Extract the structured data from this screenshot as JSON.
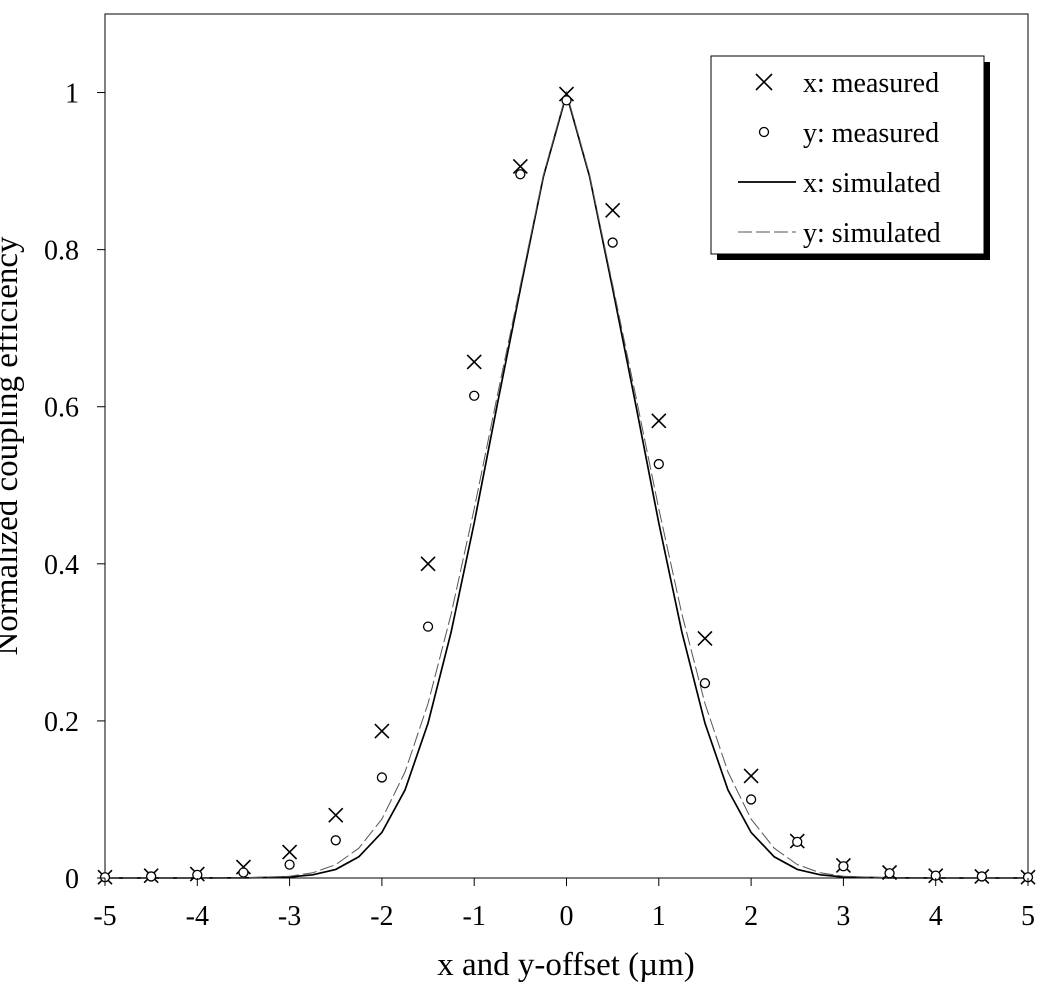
{
  "chart_data": {
    "type": "scatter",
    "title": "",
    "xlabel": "x and y-offset (µm)",
    "ylabel": "Normalized coupling efficiency",
    "xlim": [
      -5,
      5
    ],
    "ylim": [
      0,
      1.1
    ],
    "xticks": [
      -5,
      -4,
      -3,
      -2,
      -1,
      0,
      1,
      2,
      3,
      4,
      5
    ],
    "yticks": [
      0,
      0.2,
      0.4,
      0.6,
      0.8,
      1
    ],
    "xtick_labels": [
      "-5",
      "-4",
      "-3",
      "-2",
      "-1",
      "0",
      "1",
      "2",
      "3",
      "4",
      "5"
    ],
    "ytick_labels": [
      "0",
      "0.2",
      "0.4",
      "0.6",
      "0.8",
      "1"
    ],
    "grid": false,
    "legend_position": "top-right",
    "series": [
      {
        "name": "x: measured",
        "kind": "scatter",
        "marker": "x",
        "x": [
          -5,
          -4.5,
          -4,
          -3.5,
          -3,
          -2.5,
          -2,
          -1.5,
          -1,
          -0.5,
          0,
          0.5,
          1,
          1.5,
          2,
          2.5,
          3,
          3.5,
          4,
          4.5,
          5
        ],
        "y": [
          0.001,
          0.003,
          0.005,
          0.014,
          0.033,
          0.08,
          0.187,
          0.4,
          0.657,
          0.906,
          0.998,
          0.85,
          0.582,
          0.305,
          0.13,
          0.047,
          0.016,
          0.007,
          0.003,
          0.002,
          0.001
        ]
      },
      {
        "name": "y: measured",
        "kind": "scatter",
        "marker": "circle",
        "x": [
          -5,
          -4.5,
          -4,
          -3.5,
          -3,
          -2.5,
          -2,
          -1.5,
          -1,
          -0.5,
          0,
          0.5,
          1,
          1.5,
          2,
          2.5,
          3,
          3.5,
          4,
          4.5,
          5
        ],
        "y": [
          0.001,
          0.002,
          0.004,
          0.007,
          0.017,
          0.048,
          0.128,
          0.32,
          0.614,
          0.896,
          0.99,
          0.809,
          0.527,
          0.248,
          0.1,
          0.046,
          0.015,
          0.006,
          0.003,
          0.002,
          0.001
        ]
      },
      {
        "name": "x: simulated",
        "kind": "line",
        "x": [
          -5,
          -4.5,
          -4,
          -3.5,
          -3,
          -2.75,
          -2.5,
          -2.25,
          -2,
          -1.75,
          -1.5,
          -1.25,
          -1,
          -0.75,
          -0.5,
          -0.25,
          0,
          0.25,
          0.5,
          0.75,
          1,
          1.25,
          1.5,
          1.75,
          2,
          2.25,
          2.5,
          2.75,
          3,
          3.5,
          4,
          4.5,
          5
        ],
        "y": [
          0,
          0,
          0,
          0.0001,
          0.0013,
          0.0041,
          0.011,
          0.027,
          0.058,
          0.112,
          0.197,
          0.313,
          0.452,
          0.603,
          0.75,
          0.893,
          0.998,
          0.893,
          0.75,
          0.603,
          0.452,
          0.313,
          0.197,
          0.112,
          0.058,
          0.027,
          0.011,
          0.0041,
          0.0013,
          0.0001,
          0,
          0,
          0
        ]
      },
      {
        "name": "y: simulated",
        "kind": "line",
        "x": [
          -5,
          -4.5,
          -4,
          -3.5,
          -3,
          -2.75,
          -2.5,
          -2.25,
          -2,
          -1.75,
          -1.5,
          -1.25,
          -1,
          -0.75,
          -0.5,
          -0.25,
          0,
          0.25,
          0.5,
          0.75,
          1,
          1.25,
          1.5,
          1.75,
          2,
          2.25,
          2.5,
          2.75,
          3,
          3.5,
          4,
          4.5,
          5
        ],
        "y": [
          0,
          0,
          0,
          0.0002,
          0.0022,
          0.0066,
          0.017,
          0.038,
          0.075,
          0.135,
          0.222,
          0.336,
          0.47,
          0.614,
          0.755,
          0.895,
          1.0,
          0.895,
          0.755,
          0.614,
          0.47,
          0.336,
          0.222,
          0.135,
          0.075,
          0.038,
          0.017,
          0.0066,
          0.0022,
          0.0002,
          0,
          0,
          0
        ]
      }
    ]
  }
}
